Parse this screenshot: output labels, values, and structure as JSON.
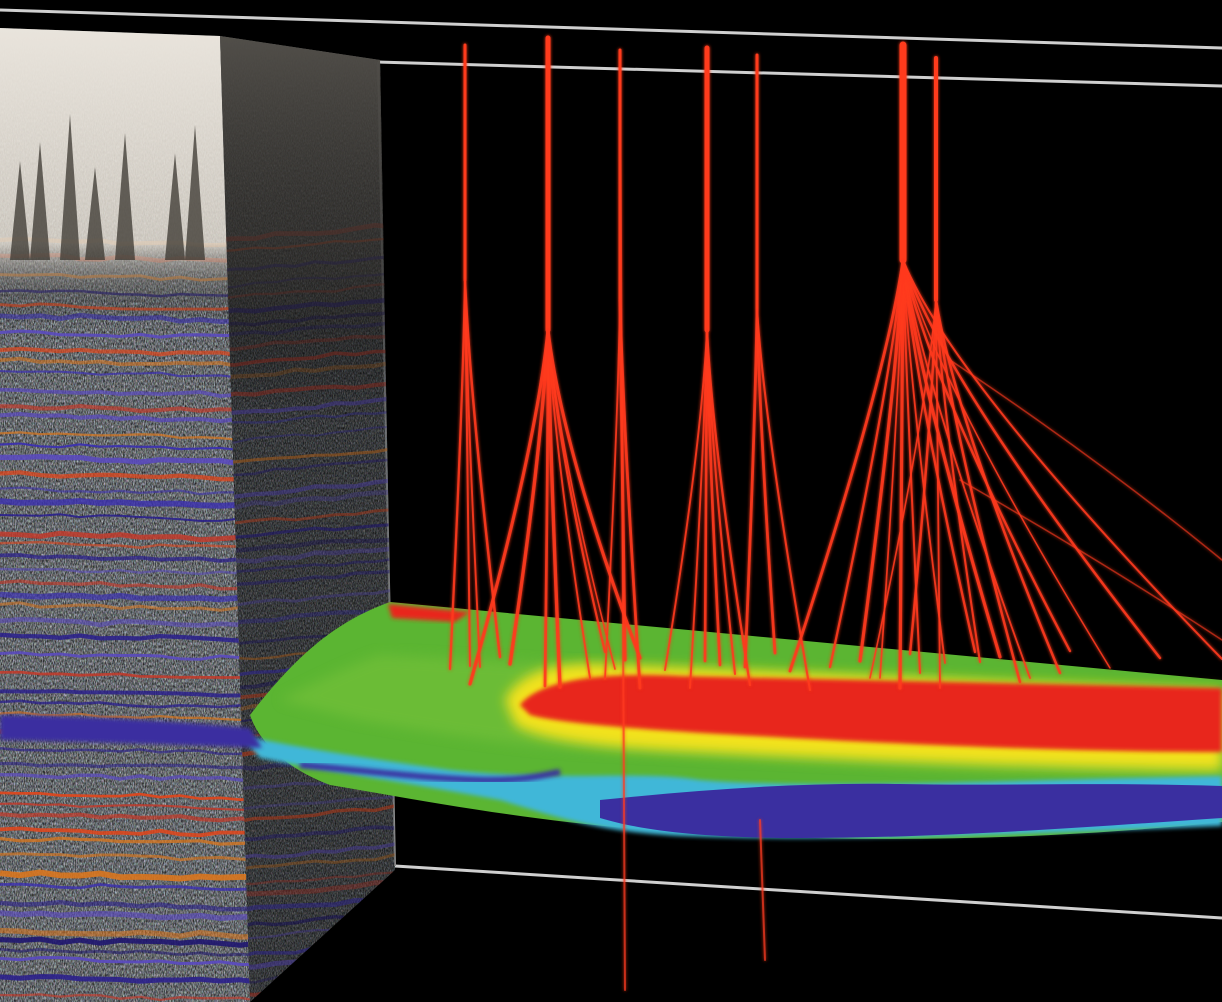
{
  "scene": {
    "description_visible_text": "",
    "colors": {
      "background": "#000000",
      "frame_line": "#d8d8d8",
      "well_red": "#ff3a1e",
      "surface_red": "#e8261a",
      "surface_yellow": "#f2e21a",
      "surface_green": "#4fae2c",
      "surface_cyan": "#3fb7d8",
      "surface_blue": "#3a2fa0",
      "seismic_light": "#d9d3c9",
      "seismic_dark": "#2b2622"
    },
    "elements": {
      "seismic_front_face": "seismic-section",
      "seismic_side_face": "seismic-section-side",
      "horizon_surface": "reservoir-horizon",
      "well_clusters": "well-trajectories",
      "bounding_frame": "frame-lines"
    }
  }
}
